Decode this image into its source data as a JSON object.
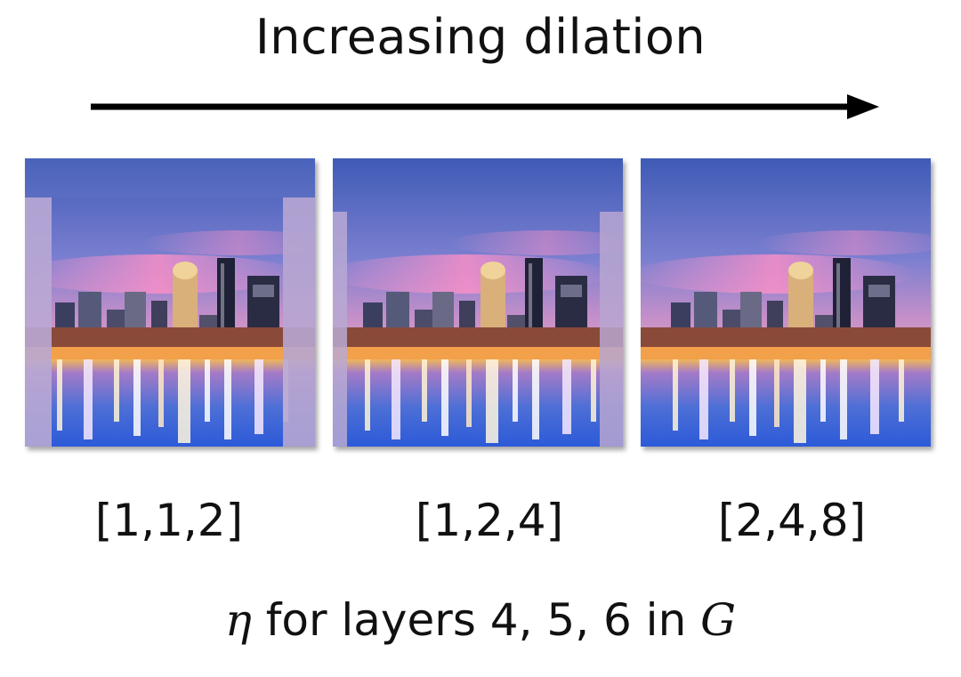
{
  "title": "Increasing dilation",
  "panels": [
    {
      "label": "[1,1,2]",
      "artifacts": "strong"
    },
    {
      "label": "[1,2,4]",
      "artifacts": "moderate"
    },
    {
      "label": "[2,4,8]",
      "artifacts": "none"
    }
  ],
  "caption": {
    "eta": "η",
    "text": " for layers 4, 5, 6 in ",
    "g": "G"
  }
}
